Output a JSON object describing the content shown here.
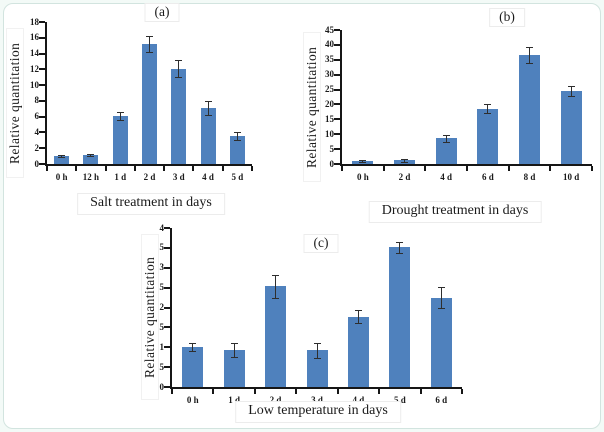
{
  "figure": {
    "background_color": "#f3faf7",
    "frame_border_color": "#d2e4df",
    "axis_color": "#161616",
    "error_bar_color": "#2e2e2e"
  },
  "chart_data": [
    {
      "type": "bar",
      "panel_label": "(a)",
      "xlabel": "Salt treatment in days",
      "ylabel": "Relative quantitation",
      "categories": [
        "0 h",
        "12 h",
        "1 d",
        "2 d",
        "3 d",
        "4 d",
        "5 d"
      ],
      "values": [
        1.0,
        1.15,
        6.1,
        15.2,
        12.1,
        7.1,
        3.5
      ],
      "errors": [
        0.12,
        0.12,
        0.55,
        1.0,
        1.1,
        0.9,
        0.5
      ],
      "ylim": [
        0,
        18
      ],
      "ytick_step": 2,
      "grid": false,
      "legend": "none",
      "bar_color": "#4f81bd"
    },
    {
      "type": "bar",
      "panel_label": "(b)",
      "xlabel": "Drought treatment in days",
      "ylabel": "Relative quantitation",
      "categories": [
        "0 h",
        "2 d",
        "4 d",
        "6 d",
        "8 d",
        "10 d"
      ],
      "values": [
        1.0,
        1.2,
        8.6,
        18.5,
        36.5,
        24.5
      ],
      "errors": [
        0.3,
        0.5,
        1.2,
        1.5,
        2.7,
        1.8
      ],
      "ylim": [
        0,
        45
      ],
      "ytick_step": 5,
      "grid": false,
      "legend": "none",
      "bar_color": "#4f81bd"
    },
    {
      "type": "bar",
      "panel_label": "(c)",
      "xlabel": "Low temperature in days",
      "ylabel": "Relative quantitation",
      "categories": [
        "0 h",
        "1 d",
        "2 d",
        "3 d",
        "4 d",
        "5 d",
        "6 d"
      ],
      "values": [
        1.0,
        0.93,
        2.53,
        0.92,
        1.77,
        3.52,
        2.25
      ],
      "errors": [
        0.1,
        0.17,
        0.28,
        0.18,
        0.16,
        0.14,
        0.26
      ],
      "ylim": [
        0,
        4
      ],
      "ytick_step": 0.5,
      "grid": false,
      "legend": "none",
      "bar_color": "#4f81bd"
    }
  ]
}
